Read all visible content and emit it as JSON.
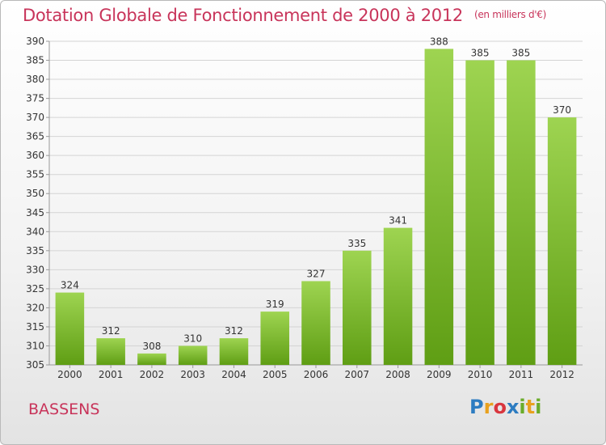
{
  "title": "Dotation Globale de Fonctionnement de 2000 à 2012",
  "subtitle": "(en milliers d'€)",
  "city": "BASSENS",
  "logo": {
    "letters": [
      "P",
      "r",
      "o",
      "x",
      "i",
      "t",
      "i"
    ]
  },
  "colors": {
    "bar_top": "#9ed451",
    "bar_bottom": "#5f9e14",
    "title": "#c8345a",
    "grid": "#d4d4d4"
  },
  "chart_data": {
    "type": "bar",
    "title": "Dotation Globale de Fonctionnement de 2000 à 2012",
    "subtitle": "(en milliers d'€)",
    "xlabel": "",
    "ylabel": "",
    "categories": [
      "2000",
      "2001",
      "2002",
      "2003",
      "2004",
      "2005",
      "2006",
      "2007",
      "2008",
      "2009",
      "2010",
      "2011",
      "2012"
    ],
    "values": [
      324,
      312,
      308,
      310,
      312,
      319,
      327,
      335,
      341,
      388,
      385,
      385,
      370
    ],
    "ylim": [
      305,
      390
    ],
    "yticks": [
      305,
      310,
      315,
      320,
      325,
      330,
      335,
      340,
      345,
      350,
      355,
      360,
      365,
      370,
      375,
      380,
      385,
      390
    ],
    "grid": true,
    "legend": "none"
  }
}
